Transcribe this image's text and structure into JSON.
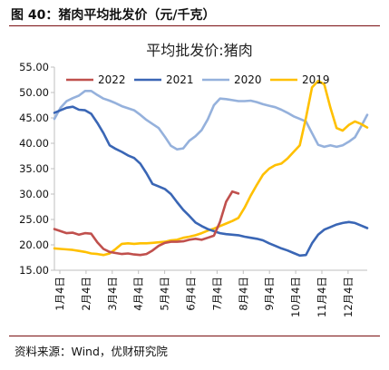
{
  "figure_caption": "图 40：猪肉平均批发价（元/千克）",
  "source": "资料来源：Wind，优财研究院",
  "colors": {
    "accent_rule": "#7a0f12",
    "s2022": "#c0504d",
    "s2021": "#3a66b5",
    "s2020": "#95b1dc",
    "s2019": "#ffc000",
    "axis": "#bfbfbf"
  },
  "chart_data": {
    "type": "line",
    "title": "平均批发价:猪肉",
    "xlabel": "",
    "ylabel": "",
    "ylim": [
      15,
      55
    ],
    "yticks": [
      "15.00",
      "20.00",
      "25.00",
      "30.00",
      "35.00",
      "40.00",
      "45.00",
      "50.00",
      "55.00"
    ],
    "xticks": [
      "1月4日",
      "2月4日",
      "3月4日",
      "4月4日",
      "5月4日",
      "6月4日",
      "7月4日",
      "8月4日",
      "9月4日",
      "10月4日",
      "11月4日",
      "12月4日"
    ],
    "x_unit": "week of year",
    "xlim": [
      1,
      52
    ],
    "legend_position": "top",
    "grid": false,
    "series": [
      {
        "name": "2022",
        "color_key": "s2022",
        "x": [
          1,
          2,
          3,
          4,
          5,
          6,
          7,
          8,
          9,
          10,
          11,
          12,
          13,
          14,
          15,
          16,
          17,
          18,
          19,
          20,
          21,
          22,
          23,
          24,
          25,
          26,
          27,
          28,
          29,
          30,
          31
        ],
        "values": [
          23.1,
          22.7,
          22.3,
          22.4,
          22.0,
          22.3,
          22.2,
          20.5,
          19.2,
          18.6,
          18.4,
          18.2,
          18.3,
          18.1,
          18.0,
          18.2,
          18.9,
          19.8,
          20.4,
          20.6,
          20.6,
          20.7,
          21.0,
          21.2,
          21.0,
          21.4,
          21.8,
          24.5,
          28.5,
          30.5,
          30.1
        ]
      },
      {
        "name": "2021",
        "color_key": "s2021",
        "x": [
          1,
          2,
          3,
          4,
          5,
          6,
          7,
          8,
          9,
          10,
          11,
          12,
          13,
          14,
          15,
          16,
          17,
          18,
          19,
          20,
          21,
          22,
          23,
          24,
          25,
          26,
          27,
          28,
          29,
          30,
          31,
          32,
          33,
          34,
          35,
          36,
          37,
          38,
          39,
          40,
          41,
          42,
          43,
          44,
          45,
          46,
          47,
          48,
          49,
          50,
          51,
          52
        ],
        "values": [
          46.0,
          46.5,
          47.0,
          47.2,
          46.6,
          46.5,
          45.8,
          44.0,
          42.0,
          39.6,
          38.9,
          38.3,
          37.6,
          37.1,
          36.0,
          34.1,
          32.0,
          31.5,
          31.0,
          30.0,
          28.4,
          26.9,
          25.7,
          24.4,
          23.7,
          23.1,
          22.7,
          22.3,
          22.1,
          22.0,
          21.9,
          21.6,
          21.4,
          21.2,
          20.9,
          20.3,
          19.8,
          19.3,
          18.9,
          18.4,
          17.9,
          18.0,
          20.3,
          22.0,
          23.0,
          23.5,
          24.0,
          24.3,
          24.5,
          24.3,
          23.8,
          23.3
        ]
      },
      {
        "name": "2020",
        "color_key": "s2020",
        "x": [
          1,
          2,
          3,
          4,
          5,
          6,
          7,
          8,
          9,
          10,
          11,
          12,
          13,
          14,
          15,
          16,
          17,
          18,
          19,
          20,
          21,
          22,
          23,
          24,
          25,
          26,
          27,
          28,
          29,
          30,
          31,
          32,
          33,
          34,
          35,
          36,
          37,
          38,
          39,
          40,
          41,
          42,
          43,
          44,
          45,
          46,
          47,
          48,
          49,
          50,
          51,
          52
        ],
        "values": [
          44.8,
          47.0,
          48.3,
          48.9,
          49.4,
          50.3,
          50.3,
          49.5,
          48.8,
          48.4,
          47.9,
          47.3,
          46.9,
          46.5,
          45.6,
          44.6,
          43.8,
          43.0,
          41.3,
          39.5,
          38.8,
          39.0,
          40.5,
          41.4,
          42.6,
          44.7,
          47.5,
          48.8,
          48.7,
          48.5,
          48.3,
          48.3,
          48.4,
          48.1,
          47.7,
          47.4,
          47.1,
          46.6,
          46.0,
          45.3,
          44.8,
          44.3,
          42.0,
          39.7,
          39.3,
          39.6,
          39.3,
          39.6,
          40.3,
          41.2,
          43.3,
          45.6
        ]
      },
      {
        "name": "2019",
        "color_key": "s2019",
        "x": [
          1,
          2,
          3,
          4,
          5,
          6,
          7,
          8,
          9,
          10,
          11,
          12,
          13,
          14,
          15,
          16,
          17,
          18,
          19,
          20,
          21,
          22,
          23,
          24,
          25,
          26,
          27,
          28,
          29,
          30,
          31,
          32,
          33,
          34,
          35,
          36,
          37,
          38,
          39,
          40,
          41,
          42,
          43,
          44,
          45,
          46,
          47,
          48,
          49,
          50,
          51,
          52
        ],
        "values": [
          19.3,
          19.2,
          19.1,
          19.0,
          18.8,
          18.6,
          18.3,
          18.2,
          18.0,
          18.3,
          19.2,
          20.2,
          20.3,
          20.2,
          20.3,
          20.3,
          20.4,
          20.5,
          20.6,
          20.9,
          21.0,
          21.4,
          21.6,
          21.9,
          22.3,
          22.8,
          23.2,
          23.7,
          24.2,
          24.7,
          25.3,
          27.3,
          29.7,
          31.8,
          33.8,
          35.0,
          35.7,
          36.0,
          37.0,
          38.3,
          39.6,
          45.0,
          51.0,
          52.3,
          51.6,
          47.0,
          43.0,
          42.5,
          43.6,
          44.3,
          43.8,
          43.1
        ]
      }
    ]
  }
}
